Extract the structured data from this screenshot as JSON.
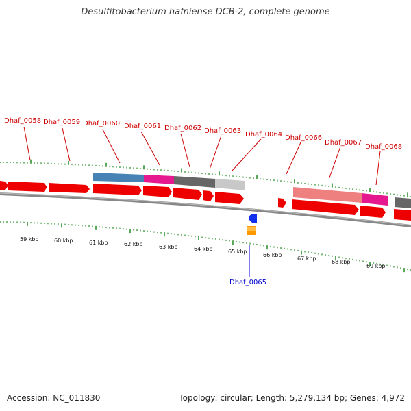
{
  "title": "Desulfitobacterium hafniense DCB-2, complete genome",
  "colors": {
    "forward_strand": "#ee0000",
    "reverse_strand": "#ee0000",
    "backbone": "#888888",
    "ticks": "#228B22",
    "label_red": "#cc0000",
    "label_blue": "#0000cc",
    "steelblue": "#4682b4",
    "magenta": "#e6188f",
    "darkgray": "#666666",
    "lightgray": "#c8c8c8",
    "salmon": "#ee8080",
    "blue_marker": "#1030ee",
    "orange_marker": "#ff9900"
  },
  "gene_labels_top": [
    "Dhaf_0058",
    "Dhaf_0059",
    "Dhaf_0060",
    "Dhaf_0061",
    "Dhaf_0062",
    "Dhaf_0063",
    "Dhaf_0064",
    "Dhaf_0066",
    "Dhaf_0067",
    "Dhaf_0068"
  ],
  "gene_label_bottom": "Dhaf_0065",
  "scale_labels": [
    "59 kbp",
    "60 kbp",
    "61 kbp",
    "62 kbp",
    "63 kbp",
    "64 kbp",
    "65 kbp",
    "66 kbp",
    "67 kbp",
    "68 kbp",
    "69 kbp"
  ],
  "footer": {
    "accession": "Accession: NC_011830",
    "summary": "Topology: circular; Length: 5,279,134 bp; Genes: 4,972"
  }
}
